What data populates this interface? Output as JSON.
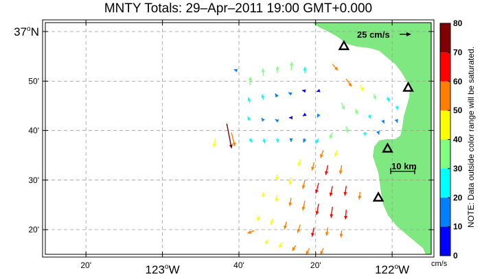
{
  "title": "MNTY Totals: 29–Apr–2011 19:00 GMT+0.000",
  "colors": {
    "land": "#80E880",
    "frame": "#000000",
    "grid": "#9a9a9a"
  },
  "legend_note": "NOTE: Data outside color range will be saturated.",
  "colorbar": {
    "unit": "cm/s",
    "ticks": [
      "0",
      "10",
      "20",
      "30",
      "40",
      "50",
      "60",
      "70",
      "80"
    ],
    "colors": [
      "#0000ff",
      "#0080ff",
      "#00ffff",
      "#80ff80",
      "#ffff00",
      "#ff8000",
      "#ff0000",
      "#800000"
    ]
  },
  "scale": {
    "vector_label": "25 cm/s",
    "distance_label": "10 km"
  },
  "axes": {
    "lon_ticks": [
      {
        "label": "20'",
        "lon": -123.333
      },
      {
        "label": "123°W",
        "lon": -123.0,
        "major": true
      },
      {
        "label": "40'",
        "lon": -122.667
      },
      {
        "label": "20'",
        "lon": -122.333
      },
      {
        "label": "122°W",
        "lon": -122.0,
        "major": true
      }
    ],
    "lat_ticks": [
      {
        "label": "37°N",
        "lat": 37.0,
        "major": true
      },
      {
        "label": "50'",
        "lat": 36.833
      },
      {
        "label": "40'",
        "lat": 36.667
      },
      {
        "label": "30'",
        "lat": 36.5
      },
      {
        "label": "20'",
        "lat": 36.333
      }
    ]
  },
  "stations": [
    {
      "lon": -122.21,
      "lat": 36.95
    },
    {
      "lon": -121.93,
      "lat": 36.81
    },
    {
      "lon": -122.02,
      "lat": 36.605
    },
    {
      "lon": -122.06,
      "lat": 36.44
    }
  ],
  "vectors": [
    {
      "lon": -122.72,
      "lat": 36.69,
      "u": 7,
      "v": -36,
      "s": 75
    },
    {
      "lon": -122.7,
      "lat": 36.66,
      "u": 5,
      "v": -20,
      "s": 58
    },
    {
      "lon": -122.77,
      "lat": 36.64,
      "u": -2,
      "v": -13,
      "s": 45
    },
    {
      "lon": -122.68,
      "lat": 36.87,
      "u": -3,
      "v": 1,
      "s": 12
    },
    {
      "lon": -122.62,
      "lat": 36.82,
      "u": 1,
      "v": 12,
      "s": 37
    },
    {
      "lon": -122.56,
      "lat": 36.85,
      "u": -1,
      "v": 11,
      "s": 35
    },
    {
      "lon": -122.5,
      "lat": 36.86,
      "u": 0,
      "v": 10,
      "s": 31
    },
    {
      "lon": -122.44,
      "lat": 36.87,
      "u": 1,
      "v": 12,
      "s": 36
    },
    {
      "lon": -122.38,
      "lat": 36.86,
      "u": 0,
      "v": 9,
      "s": 28
    },
    {
      "lon": -122.62,
      "lat": 36.76,
      "u": -2,
      "v": 8,
      "s": 24
    },
    {
      "lon": -122.56,
      "lat": 36.77,
      "u": -2,
      "v": 8,
      "s": 22
    },
    {
      "lon": -122.5,
      "lat": 36.78,
      "u": -3,
      "v": 5,
      "s": 16
    },
    {
      "lon": -122.44,
      "lat": 36.79,
      "u": -4,
      "v": 2,
      "s": 12
    },
    {
      "lon": -122.38,
      "lat": 36.8,
      "u": -4,
      "v": 1,
      "s": 8
    },
    {
      "lon": -122.32,
      "lat": 36.8,
      "u": -3,
      "v": -1,
      "s": 6
    },
    {
      "lon": -122.62,
      "lat": 36.7,
      "u": -3,
      "v": 6,
      "s": 20
    },
    {
      "lon": -122.56,
      "lat": 36.7,
      "u": -3,
      "v": 4,
      "s": 15
    },
    {
      "lon": -122.5,
      "lat": 36.7,
      "u": -3,
      "v": 2,
      "s": 10
    },
    {
      "lon": -122.44,
      "lat": 36.71,
      "u": -3,
      "v": 0,
      "s": 6
    },
    {
      "lon": -122.38,
      "lat": 36.72,
      "u": -3,
      "v": -2,
      "s": 8
    },
    {
      "lon": -122.32,
      "lat": 36.72,
      "u": -2,
      "v": -4,
      "s": 14
    },
    {
      "lon": -122.62,
      "lat": 36.64,
      "u": 3,
      "v": -6,
      "s": 22
    },
    {
      "lon": -122.56,
      "lat": 36.64,
      "u": 2,
      "v": -7,
      "s": 24
    },
    {
      "lon": -122.5,
      "lat": 36.64,
      "u": 1,
      "v": -6,
      "s": 20
    },
    {
      "lon": -122.44,
      "lat": 36.64,
      "u": 0,
      "v": -5,
      "s": 15
    },
    {
      "lon": -122.38,
      "lat": 36.64,
      "u": -2,
      "v": -6,
      "s": 18
    },
    {
      "lon": -122.32,
      "lat": 36.64,
      "u": -4,
      "v": -7,
      "s": 26
    },
    {
      "lon": -122.26,
      "lat": 36.66,
      "u": -4,
      "v": -9,
      "s": 30
    },
    {
      "lon": -122.26,
      "lat": 36.89,
      "u": 8,
      "v": -9,
      "s": 55
    },
    {
      "lon": -122.2,
      "lat": 36.84,
      "u": 8,
      "v": -11,
      "s": 52
    },
    {
      "lon": -122.14,
      "lat": 36.82,
      "u": 5,
      "v": -9,
      "s": 40
    },
    {
      "lon": -122.08,
      "lat": 36.79,
      "u": 3,
      "v": -8,
      "s": 32
    },
    {
      "lon": -122.02,
      "lat": 36.78,
      "u": 2,
      "v": -7,
      "s": 25
    },
    {
      "lon": -121.98,
      "lat": 36.75,
      "u": 1,
      "v": -6,
      "s": 20
    },
    {
      "lon": -122.22,
      "lat": 36.76,
      "u": 4,
      "v": -10,
      "s": 38
    },
    {
      "lon": -122.16,
      "lat": 36.74,
      "u": 3,
      "v": -8,
      "s": 32
    },
    {
      "lon": -122.1,
      "lat": 36.72,
      "u": 2,
      "v": -6,
      "s": 24
    },
    {
      "lon": -122.04,
      "lat": 36.7,
      "u": 2,
      "v": -4,
      "s": 18
    },
    {
      "lon": -121.98,
      "lat": 36.7,
      "u": 1,
      "v": -3,
      "s": 14
    },
    {
      "lon": -122.2,
      "lat": 36.68,
      "u": 2,
      "v": -9,
      "s": 34
    },
    {
      "lon": -122.12,
      "lat": 36.66,
      "u": 1,
      "v": -5,
      "s": 20
    },
    {
      "lon": -122.06,
      "lat": 36.66,
      "u": 1,
      "v": -3,
      "s": 12
    },
    {
      "lon": -122.3,
      "lat": 36.6,
      "u": -4,
      "v": -11,
      "s": 50
    },
    {
      "lon": -122.24,
      "lat": 36.6,
      "u": -3,
      "v": -9,
      "s": 45
    },
    {
      "lon": -122.4,
      "lat": 36.57,
      "u": -3,
      "v": -10,
      "s": 45
    },
    {
      "lon": -122.34,
      "lat": 36.56,
      "u": -3,
      "v": -12,
      "s": 55
    },
    {
      "lon": -122.28,
      "lat": 36.55,
      "u": -3,
      "v": -14,
      "s": 60
    },
    {
      "lon": -122.22,
      "lat": 36.55,
      "u": -2,
      "v": -13,
      "s": 58
    },
    {
      "lon": -122.5,
      "lat": 36.52,
      "u": -1,
      "v": -9,
      "s": 40
    },
    {
      "lon": -122.44,
      "lat": 36.51,
      "u": -2,
      "v": -11,
      "s": 48
    },
    {
      "lon": -122.38,
      "lat": 36.5,
      "u": -3,
      "v": -13,
      "s": 55
    },
    {
      "lon": -122.32,
      "lat": 36.49,
      "u": -4,
      "v": -15,
      "s": 62
    },
    {
      "lon": -122.26,
      "lat": 36.48,
      "u": -3,
      "v": -15,
      "s": 65
    },
    {
      "lon": -122.2,
      "lat": 36.48,
      "u": -2,
      "v": -14,
      "s": 62
    },
    {
      "lon": -122.14,
      "lat": 36.46,
      "u": -1,
      "v": -11,
      "s": 55
    },
    {
      "lon": -122.56,
      "lat": 36.46,
      "u": -1,
      "v": -8,
      "s": 40
    },
    {
      "lon": -122.5,
      "lat": 36.45,
      "u": -2,
      "v": -10,
      "s": 45
    },
    {
      "lon": -122.44,
      "lat": 36.44,
      "u": -2,
      "v": -12,
      "s": 52
    },
    {
      "lon": -122.38,
      "lat": 36.43,
      "u": -3,
      "v": -14,
      "s": 58
    },
    {
      "lon": -122.32,
      "lat": 36.42,
      "u": -3,
      "v": -16,
      "s": 66
    },
    {
      "lon": -122.26,
      "lat": 36.41,
      "u": -2,
      "v": -16,
      "s": 68
    },
    {
      "lon": -122.2,
      "lat": 36.4,
      "u": -1,
      "v": -14,
      "s": 64
    },
    {
      "lon": -122.58,
      "lat": 36.38,
      "u": -2,
      "v": -8,
      "s": 42
    },
    {
      "lon": -122.52,
      "lat": 36.37,
      "u": -3,
      "v": -9,
      "s": 45
    },
    {
      "lon": -122.46,
      "lat": 36.36,
      "u": -3,
      "v": -11,
      "s": 50
    },
    {
      "lon": -122.4,
      "lat": 36.35,
      "u": -4,
      "v": -12,
      "s": 56
    },
    {
      "lon": -122.34,
      "lat": 36.34,
      "u": -3,
      "v": -13,
      "s": 60
    },
    {
      "lon": -122.28,
      "lat": 36.34,
      "u": -2,
      "v": -12,
      "s": 58
    },
    {
      "lon": -122.22,
      "lat": 36.33,
      "u": -1,
      "v": -10,
      "s": 55
    },
    {
      "lon": -122.54,
      "lat": 36.3,
      "u": -4,
      "v": -7,
      "s": 42
    },
    {
      "lon": -122.48,
      "lat": 36.29,
      "u": -4,
      "v": -8,
      "s": 45
    },
    {
      "lon": -122.42,
      "lat": 36.28,
      "u": -5,
      "v": -8,
      "s": 50
    },
    {
      "lon": -122.36,
      "lat": 36.27,
      "u": -5,
      "v": -9,
      "s": 54
    },
    {
      "lon": -122.3,
      "lat": 36.27,
      "u": -4,
      "v": -9,
      "s": 58
    },
    {
      "lon": -122.6,
      "lat": 36.33,
      "u": -10,
      "v": -4,
      "s": 55
    },
    {
      "lon": -122.38,
      "lat": 36.24,
      "u": -6,
      "v": -9,
      "s": 62
    }
  ]
}
